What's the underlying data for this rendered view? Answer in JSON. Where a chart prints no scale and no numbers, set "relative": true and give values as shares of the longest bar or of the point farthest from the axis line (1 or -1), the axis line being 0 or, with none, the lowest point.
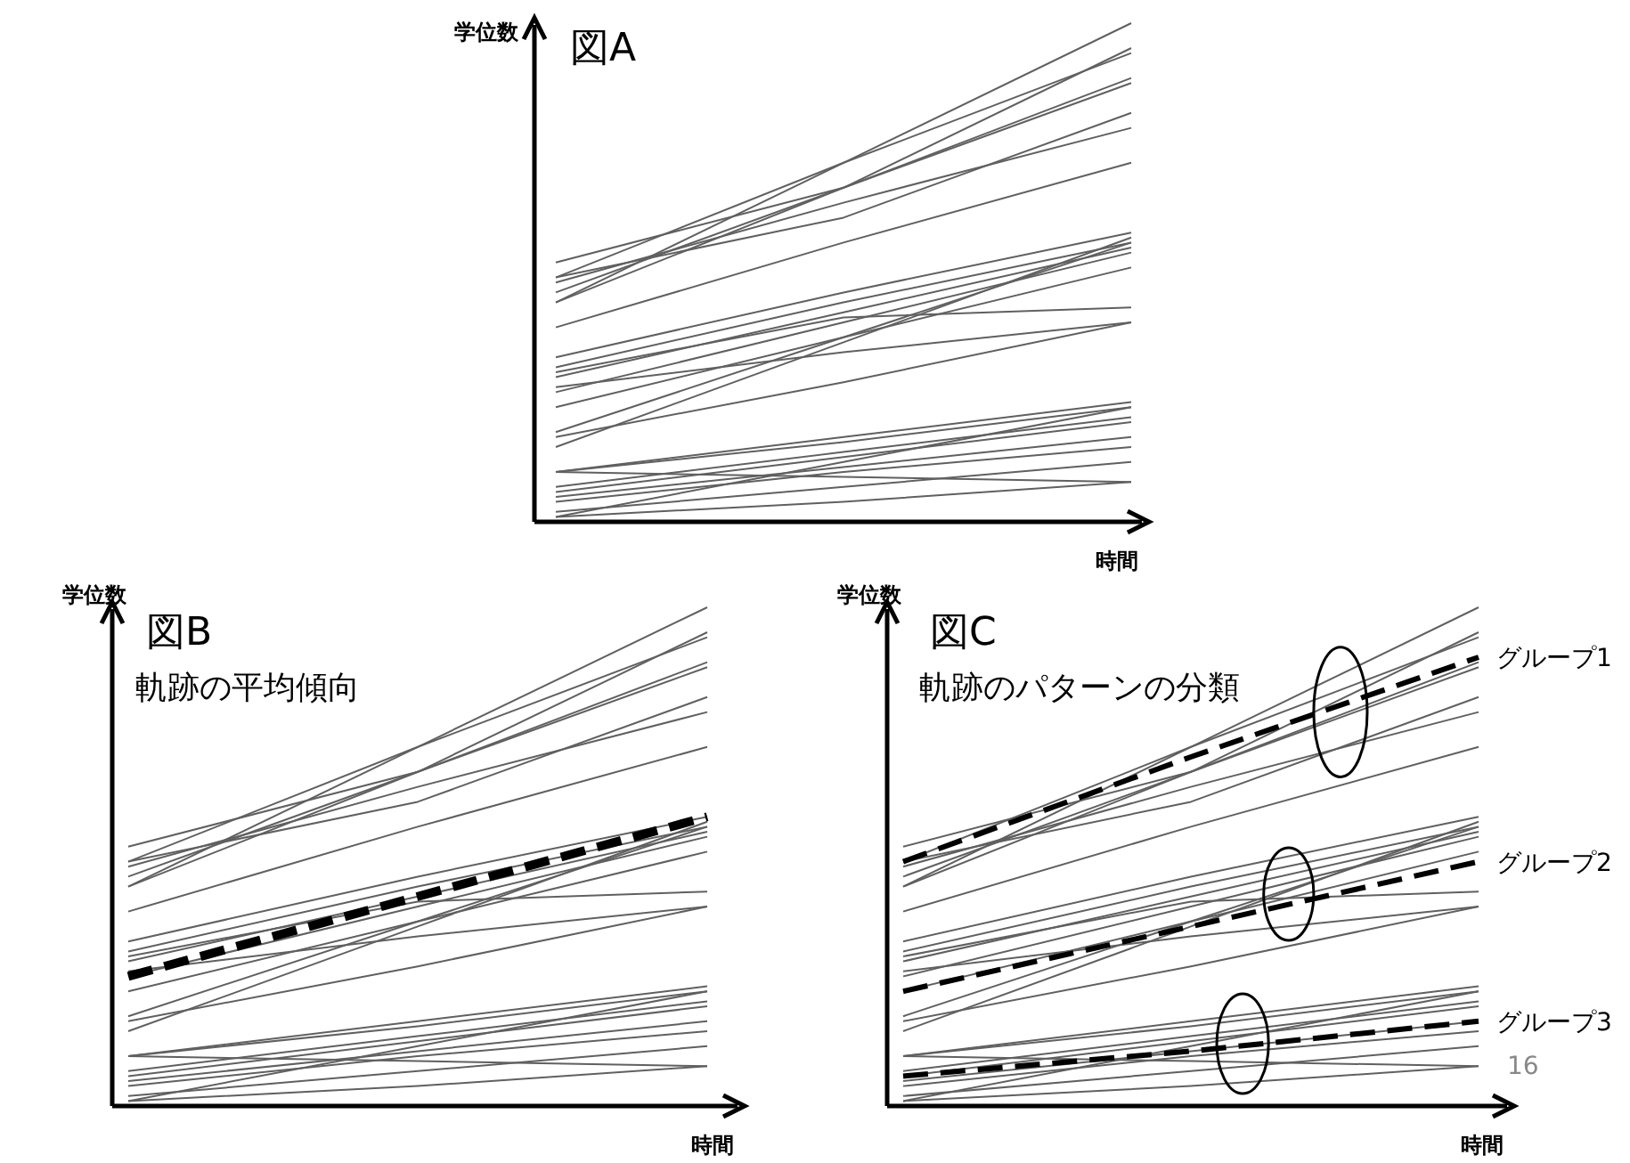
{
  "chart_data": [
    {
      "type": "line",
      "title": "図A",
      "xlabel": "時間",
      "ylabel": "学位数",
      "categories": [
        null,
        null,
        null
      ],
      "relative": true,
      "series": [
        {
          "color": "#606060",
          "values": [
            0.44,
            0.72,
            1.0
          ]
        },
        {
          "color": "#606060",
          "values": [
            0.52,
            0.67,
            0.95
          ]
        },
        {
          "color": "#606060",
          "values": [
            0.49,
            0.72,
            0.94
          ]
        },
        {
          "color": "#606060",
          "values": [
            0.44,
            0.67,
            0.89
          ]
        },
        {
          "color": "#606060",
          "values": [
            0.46,
            0.67,
            0.88
          ]
        },
        {
          "color": "#606060",
          "values": [
            0.49,
            0.61,
            0.82
          ]
        },
        {
          "color": "#606060",
          "values": [
            0.48,
            0.64,
            0.79
          ]
        },
        {
          "color": "#606060",
          "values": [
            0.39,
            0.56,
            0.72
          ]
        },
        {
          "color": "#606060",
          "values": [
            0.33,
            0.46,
            0.58
          ]
        },
        {
          "color": "#606060",
          "values": [
            0.31,
            0.44,
            0.56
          ]
        },
        {
          "color": "#606060",
          "values": [
            0.29,
            0.42,
            0.55
          ]
        },
        {
          "color": "#606060",
          "values": [
            0.26,
            0.4,
            0.54
          ]
        },
        {
          "color": "#606060",
          "values": [
            0.23,
            0.37,
            0.51
          ]
        },
        {
          "color": "#606060",
          "values": [
            0.15,
            0.36,
            0.57
          ]
        },
        {
          "color": "#606060",
          "values": [
            0.18,
            0.37,
            0.56
          ]
        },
        {
          "color": "#606060",
          "values": [
            0.3,
            0.41,
            0.43
          ]
        },
        {
          "color": "#606060",
          "values": [
            0.27,
            0.34,
            0.4
          ]
        },
        {
          "color": "#606060",
          "values": [
            0.17,
            0.28,
            0.4
          ]
        },
        {
          "color": "#606060",
          "values": [
            0.1,
            0.17,
            0.24
          ]
        },
        {
          "color": "#606060",
          "values": [
            0.1,
            0.16,
            0.23
          ]
        },
        {
          "color": "#606060",
          "values": [
            0.07,
            0.14,
            0.21
          ]
        },
        {
          "color": "#606060",
          "values": [
            0.06,
            0.13,
            0.2
          ]
        },
        {
          "color": "#606060",
          "values": [
            0.05,
            0.11,
            0.17
          ]
        },
        {
          "color": "#606060",
          "values": [
            0.04,
            0.1,
            0.15
          ]
        },
        {
          "color": "#606060",
          "values": [
            0.02,
            0.07,
            0.12
          ]
        },
        {
          "color": "#606060",
          "values": [
            0.01,
            0.04,
            0.08
          ]
        },
        {
          "color": "#606060",
          "values": [
            0.1,
            0.09,
            0.08
          ]
        },
        {
          "color": "#606060",
          "values": [
            0.01,
            0.12,
            0.23
          ]
        }
      ]
    },
    {
      "type": "line",
      "title": "図B",
      "subtitle": "軌跡の平均傾向",
      "xlabel": "時間",
      "ylabel": "学位数",
      "categories": [
        null,
        null,
        null
      ],
      "relative": true,
      "series": [
        {
          "color": "#606060",
          "values": [
            0.44,
            0.72,
            1.0
          ]
        },
        {
          "color": "#606060",
          "values": [
            0.52,
            0.67,
            0.95
          ]
        },
        {
          "color": "#606060",
          "values": [
            0.49,
            0.72,
            0.94
          ]
        },
        {
          "color": "#606060",
          "values": [
            0.44,
            0.67,
            0.89
          ]
        },
        {
          "color": "#606060",
          "values": [
            0.46,
            0.67,
            0.88
          ]
        },
        {
          "color": "#606060",
          "values": [
            0.49,
            0.61,
            0.82
          ]
        },
        {
          "color": "#606060",
          "values": [
            0.48,
            0.64,
            0.79
          ]
        },
        {
          "color": "#606060",
          "values": [
            0.39,
            0.56,
            0.72
          ]
        },
        {
          "color": "#606060",
          "values": [
            0.33,
            0.46,
            0.58
          ]
        },
        {
          "color": "#606060",
          "values": [
            0.31,
            0.44,
            0.56
          ]
        },
        {
          "color": "#606060",
          "values": [
            0.29,
            0.42,
            0.55
          ]
        },
        {
          "color": "#606060",
          "values": [
            0.26,
            0.4,
            0.54
          ]
        },
        {
          "color": "#606060",
          "values": [
            0.23,
            0.37,
            0.51
          ]
        },
        {
          "color": "#606060",
          "values": [
            0.15,
            0.36,
            0.57
          ]
        },
        {
          "color": "#606060",
          "values": [
            0.18,
            0.37,
            0.56
          ]
        },
        {
          "color": "#606060",
          "values": [
            0.3,
            0.41,
            0.43
          ]
        },
        {
          "color": "#606060",
          "values": [
            0.27,
            0.34,
            0.4
          ]
        },
        {
          "color": "#606060",
          "values": [
            0.17,
            0.28,
            0.4
          ]
        },
        {
          "color": "#606060",
          "values": [
            0.1,
            0.17,
            0.24
          ]
        },
        {
          "color": "#606060",
          "values": [
            0.1,
            0.16,
            0.23
          ]
        },
        {
          "color": "#606060",
          "values": [
            0.07,
            0.14,
            0.21
          ]
        },
        {
          "color": "#606060",
          "values": [
            0.06,
            0.13,
            0.2
          ]
        },
        {
          "color": "#606060",
          "values": [
            0.05,
            0.11,
            0.17
          ]
        },
        {
          "color": "#606060",
          "values": [
            0.04,
            0.1,
            0.15
          ]
        },
        {
          "color": "#606060",
          "values": [
            0.02,
            0.07,
            0.12
          ]
        },
        {
          "color": "#606060",
          "values": [
            0.01,
            0.04,
            0.08
          ]
        },
        {
          "color": "#606060",
          "values": [
            0.1,
            0.09,
            0.08
          ]
        },
        {
          "color": "#606060",
          "values": [
            0.01,
            0.12,
            0.23
          ]
        },
        {
          "color": "#000000",
          "line_style": "dashed",
          "values": [
            0.26,
            0.42,
            0.58
          ]
        }
      ]
    },
    {
      "type": "line",
      "title": "図C",
      "subtitle": "軌跡のパターンの分類",
      "xlabel": "時間",
      "ylabel": "学位数",
      "categories": [
        null,
        null,
        null
      ],
      "relative": true,
      "annotations": [
        "16"
      ],
      "series": [
        {
          "color": "#606060",
          "values": [
            0.44,
            0.72,
            1.0
          ]
        },
        {
          "color": "#606060",
          "values": [
            0.52,
            0.67,
            0.95
          ]
        },
        {
          "color": "#606060",
          "values": [
            0.49,
            0.72,
            0.94
          ]
        },
        {
          "color": "#606060",
          "values": [
            0.44,
            0.67,
            0.89
          ]
        },
        {
          "color": "#606060",
          "values": [
            0.46,
            0.67,
            0.88
          ]
        },
        {
          "color": "#606060",
          "values": [
            0.49,
            0.61,
            0.82
          ]
        },
        {
          "color": "#606060",
          "values": [
            0.48,
            0.64,
            0.79
          ]
        },
        {
          "color": "#606060",
          "values": [
            0.39,
            0.56,
            0.72
          ]
        },
        {
          "color": "#606060",
          "values": [
            0.33,
            0.46,
            0.58
          ]
        },
        {
          "color": "#606060",
          "values": [
            0.31,
            0.44,
            0.56
          ]
        },
        {
          "color": "#606060",
          "values": [
            0.29,
            0.42,
            0.55
          ]
        },
        {
          "color": "#606060",
          "values": [
            0.26,
            0.4,
            0.54
          ]
        },
        {
          "color": "#606060",
          "values": [
            0.23,
            0.37,
            0.51
          ]
        },
        {
          "color": "#606060",
          "values": [
            0.15,
            0.36,
            0.57
          ]
        },
        {
          "color": "#606060",
          "values": [
            0.18,
            0.37,
            0.56
          ]
        },
        {
          "color": "#606060",
          "values": [
            0.3,
            0.41,
            0.43
          ]
        },
        {
          "color": "#606060",
          "values": [
            0.27,
            0.34,
            0.4
          ]
        },
        {
          "color": "#606060",
          "values": [
            0.17,
            0.28,
            0.4
          ]
        },
        {
          "color": "#606060",
          "values": [
            0.1,
            0.17,
            0.24
          ]
        },
        {
          "color": "#606060",
          "values": [
            0.1,
            0.16,
            0.23
          ]
        },
        {
          "color": "#606060",
          "values": [
            0.07,
            0.14,
            0.21
          ]
        },
        {
          "color": "#606060",
          "values": [
            0.06,
            0.13,
            0.2
          ]
        },
        {
          "color": "#606060",
          "values": [
            0.05,
            0.11,
            0.17
          ]
        },
        {
          "color": "#606060",
          "values": [
            0.04,
            0.1,
            0.15
          ]
        },
        {
          "color": "#606060",
          "values": [
            0.02,
            0.07,
            0.12
          ]
        },
        {
          "color": "#606060",
          "values": [
            0.01,
            0.04,
            0.08
          ]
        },
        {
          "color": "#606060",
          "values": [
            0.1,
            0.09,
            0.08
          ]
        },
        {
          "color": "#606060",
          "values": [
            0.01,
            0.12,
            0.23
          ]
        },
        {
          "name": "グループ1",
          "color": "#000000",
          "line_style": "dashed",
          "values": [
            0.49,
            0.7,
            0.9
          ]
        },
        {
          "name": "グループ2",
          "color": "#000000",
          "line_style": "dashed",
          "values": [
            0.23,
            0.36,
            0.49
          ]
        },
        {
          "name": "グループ3",
          "color": "#000000",
          "line_style": "dashed",
          "values": [
            0.06,
            0.11,
            0.17
          ]
        }
      ]
    }
  ]
}
